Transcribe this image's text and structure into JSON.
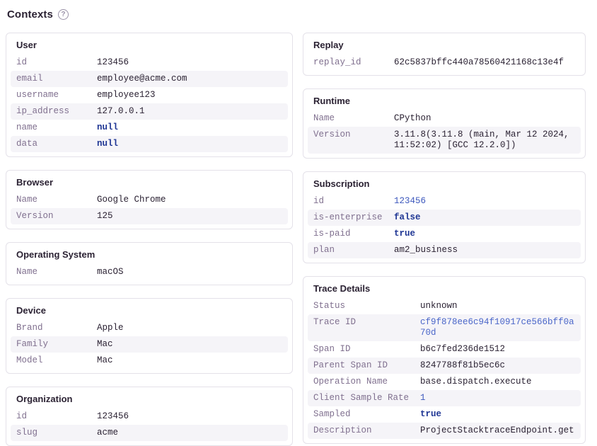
{
  "page": {
    "title": "Contexts",
    "help_icon_glyph": "?"
  },
  "colors": {
    "key_text": "#80708f",
    "value_text": "#2b2233",
    "link_blue": "#4a66c9",
    "number_blue": "#3d58bd",
    "boolean_navy": "#1f3694",
    "row_stripe": "#f5f4f8",
    "card_border": "#e4e1e9"
  },
  "columns": {
    "left": [
      {
        "title": "User",
        "rows": [
          {
            "key": "id",
            "value": "123456",
            "type": "string"
          },
          {
            "key": "email",
            "value": "employee@acme.com",
            "type": "string"
          },
          {
            "key": "username",
            "value": "employee123",
            "type": "string"
          },
          {
            "key": "ip_address",
            "value": "127.0.0.1",
            "type": "string"
          },
          {
            "key": "name",
            "value": "null",
            "type": "null"
          },
          {
            "key": "data",
            "value": "null",
            "type": "null"
          }
        ]
      },
      {
        "title": "Browser",
        "rows": [
          {
            "key": "Name",
            "value": "Google Chrome",
            "type": "string"
          },
          {
            "key": "Version",
            "value": "125",
            "type": "string"
          }
        ]
      },
      {
        "title": "Operating System",
        "rows": [
          {
            "key": "Name",
            "value": "macOS",
            "type": "string"
          }
        ]
      },
      {
        "title": "Device",
        "rows": [
          {
            "key": "Brand",
            "value": "Apple",
            "type": "string"
          },
          {
            "key": "Family",
            "value": "Mac",
            "type": "string"
          },
          {
            "key": "Model",
            "value": "Mac",
            "type": "string"
          }
        ]
      },
      {
        "title": "Organization",
        "rows": [
          {
            "key": "id",
            "value": "123456",
            "type": "string"
          },
          {
            "key": "slug",
            "value": "acme",
            "type": "string"
          }
        ]
      }
    ],
    "right": [
      {
        "title": "Replay",
        "rows": [
          {
            "key": "replay_id",
            "value": "62c5837bffc440a78560421168c13e4f",
            "type": "string"
          }
        ]
      },
      {
        "title": "Runtime",
        "rows": [
          {
            "key": "Name",
            "value": "CPython",
            "type": "string"
          },
          {
            "key": "Version",
            "value": "3.11.8(3.11.8 (main, Mar 12 2024, 11:52:02) [GCC 12.2.0])",
            "type": "string"
          }
        ]
      },
      {
        "title": "Subscription",
        "rows": [
          {
            "key": "id",
            "value": "123456",
            "type": "number"
          },
          {
            "key": "is-enterprise",
            "value": "false",
            "type": "boolean"
          },
          {
            "key": "is-paid",
            "value": "true",
            "type": "boolean"
          },
          {
            "key": "plan",
            "value": "am2_business",
            "type": "string"
          }
        ]
      },
      {
        "title": "Trace Details",
        "rows": [
          {
            "key": "Status",
            "value": "unknown",
            "type": "string"
          },
          {
            "key": "Trace ID",
            "value": "cf9f878ee6c94f10917ce566bff0a70d",
            "type": "link"
          },
          {
            "key": "Span ID",
            "value": "b6c7fed236de1512",
            "type": "string"
          },
          {
            "key": "Parent Span ID",
            "value": "8247788f81b5ec6c",
            "type": "string"
          },
          {
            "key": "Operation Name",
            "value": "base.dispatch.execute",
            "type": "string"
          },
          {
            "key": "Client Sample Rate",
            "value": "1",
            "type": "number"
          },
          {
            "key": "Sampled",
            "value": "true",
            "type": "boolean"
          },
          {
            "key": "Description",
            "value": "ProjectStacktraceEndpoint.get",
            "type": "string"
          }
        ]
      }
    ]
  }
}
